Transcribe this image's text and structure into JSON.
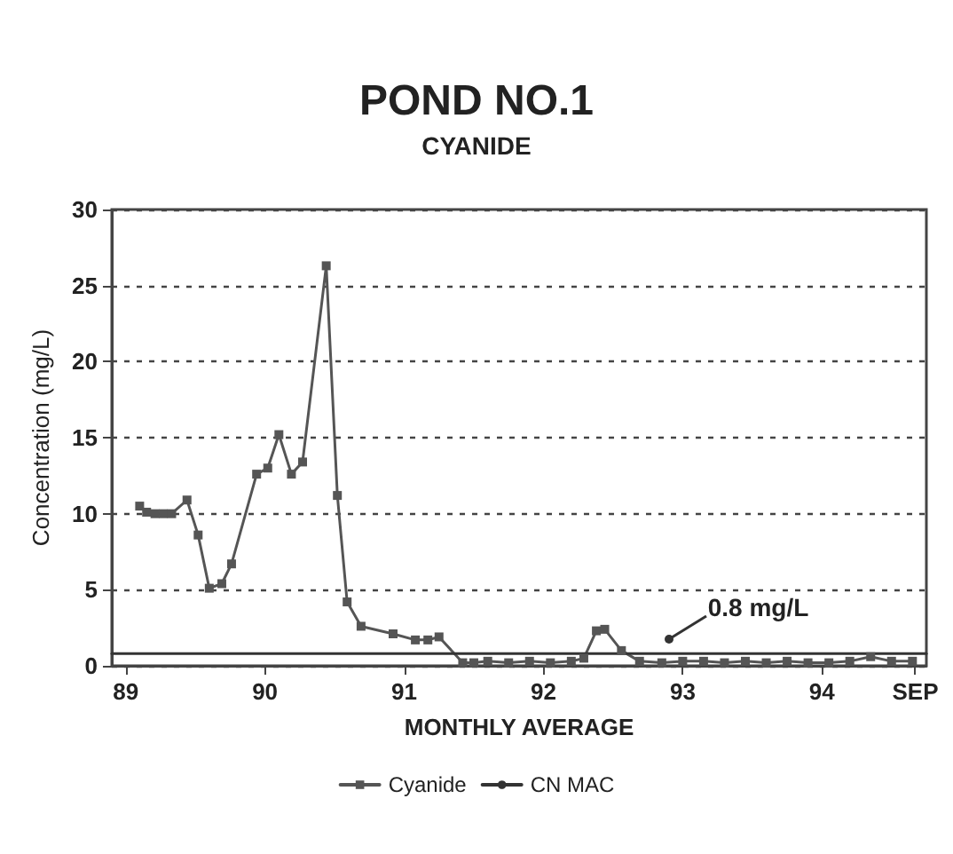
{
  "chart_data": {
    "type": "line",
    "title": "POND NO.1",
    "subtitle": "CYANIDE",
    "xlabel": "MONTHLY AVERAGE",
    "ylabel": "Concentration (mg/L)",
    "series": [
      {
        "name": "Cyanide",
        "color": "#555555",
        "marker": "square",
        "x": [
          89.1,
          89.15,
          89.21,
          89.27,
          89.33,
          89.44,
          89.52,
          89.6,
          89.69,
          89.76,
          89.94,
          90.02,
          90.1,
          90.19,
          90.27,
          90.44,
          90.52,
          90.59,
          90.69,
          90.92,
          91.08,
          91.17,
          91.25,
          91.42,
          91.5,
          91.6,
          91.75,
          91.9,
          92.05,
          92.2,
          92.29,
          92.38,
          92.44,
          92.56,
          92.69,
          92.85,
          93.0,
          93.15,
          93.3,
          93.45,
          93.6,
          93.75,
          93.9,
          94.05,
          94.2,
          94.35,
          94.5,
          94.65
        ],
        "values": [
          10.5,
          10.1,
          10,
          10,
          10,
          10.9,
          8.6,
          5.1,
          5.4,
          6.7,
          12.6,
          13,
          15.2,
          12.6,
          13.4,
          26.3,
          11.2,
          4.2,
          2.6,
          2.1,
          1.7,
          1.7,
          1.9,
          0.2,
          0.2,
          0.3,
          0.2,
          0.3,
          0.2,
          0.3,
          0.5,
          2.3,
          2.4,
          1.0,
          0.3,
          0.2,
          0.3,
          0.3,
          0.2,
          0.3,
          0.2,
          0.3,
          0.2,
          0.2,
          0.3,
          0.6,
          0.3,
          0.3
        ]
      },
      {
        "name": "CN MAC",
        "color": "#333333",
        "marker": "none",
        "x": [
          88.9,
          94.75
        ],
        "values": [
          0.8,
          0.8
        ]
      }
    ],
    "annotations": [
      {
        "text": "0.8 mg/L",
        "x": 92.9,
        "y": 1.8
      }
    ],
    "xlim": [
      88.9,
      94.75
    ],
    "xticks": [
      89,
      90,
      91,
      92,
      93,
      94,
      {
        "value": 94.67,
        "label": "SEP"
      }
    ],
    "ylim": [
      0,
      30
    ],
    "yticks": [
      0,
      5,
      10,
      15,
      20,
      25,
      30
    ],
    "grid": "y",
    "legend": "bottom",
    "line_style": "solid"
  }
}
